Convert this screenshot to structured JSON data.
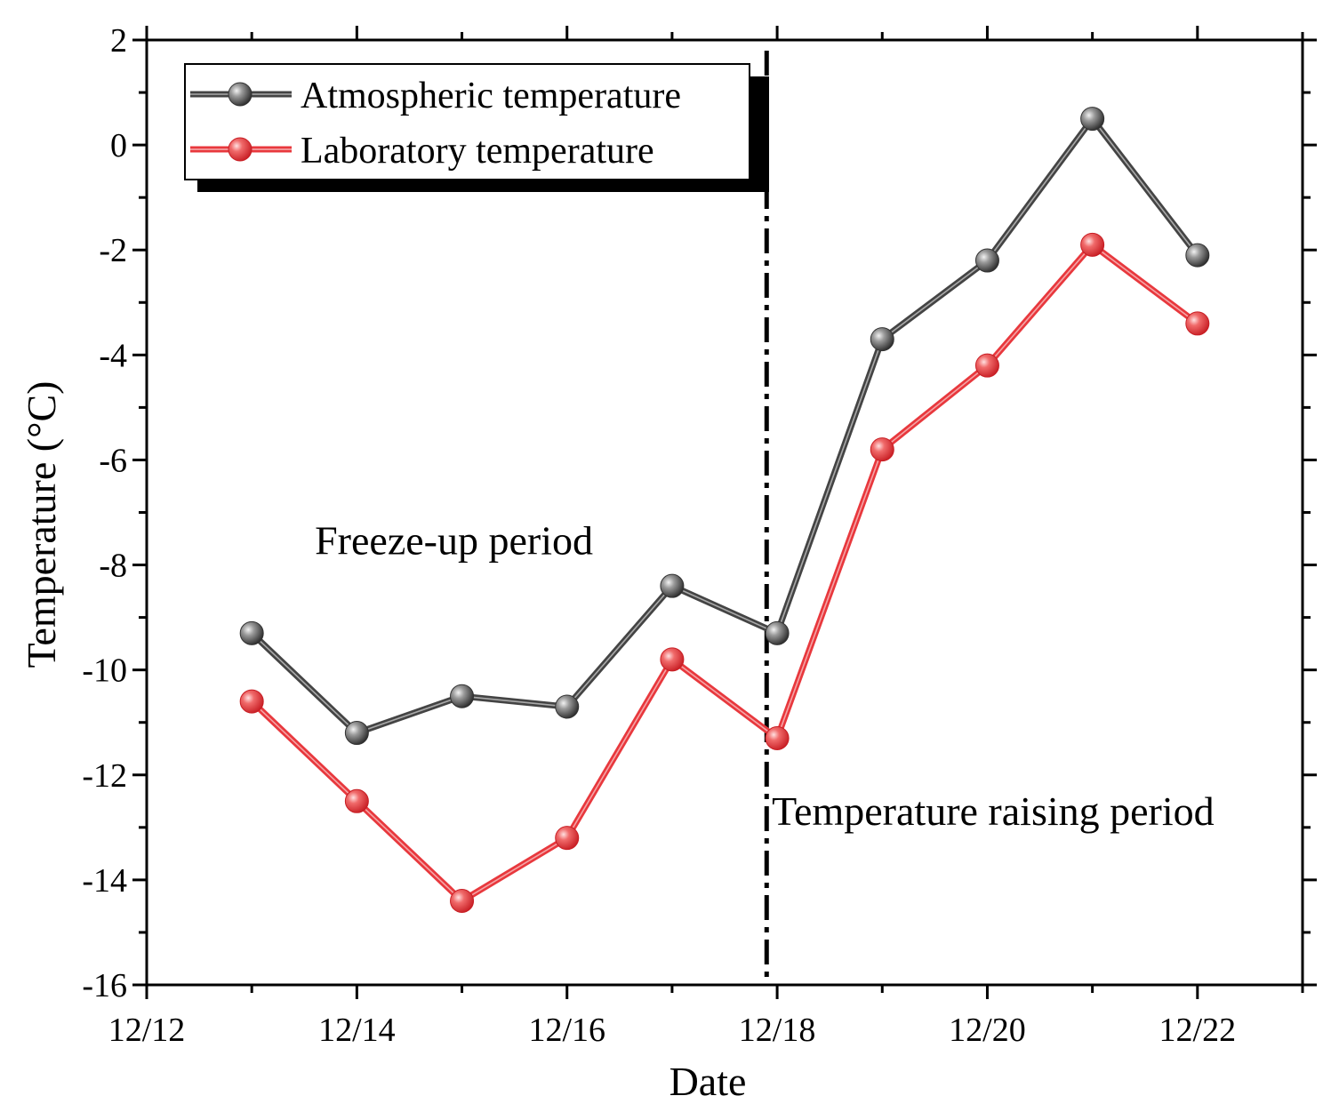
{
  "chart_data": {
    "type": "line",
    "title": "",
    "xlabel": "Date",
    "ylabel": "Temperature (°C)",
    "x_tick_labels": [
      "12/12",
      "12/14",
      "12/16",
      "12/18",
      "12/20",
      "12/22"
    ],
    "x_tick_days": [
      12,
      14,
      16,
      18,
      20,
      22
    ],
    "xlim_days": [
      12,
      23
    ],
    "y_ticks": [
      2,
      0,
      -2,
      -4,
      -6,
      -8,
      -10,
      -12,
      -14,
      -16
    ],
    "ylim": [
      -16,
      2
    ],
    "x_days": [
      13,
      14,
      15,
      16,
      17,
      18,
      19,
      20,
      21,
      22
    ],
    "series": [
      {
        "name": "Atmospheric temperature",
        "color": "#444444",
        "values": [
          -9.3,
          -11.2,
          -10.5,
          -10.7,
          -8.4,
          -9.3,
          -3.7,
          -2.2,
          0.5,
          -2.1
        ]
      },
      {
        "name": "Laboratory temperature",
        "color": "#e8383d",
        "values": [
          -10.6,
          -12.5,
          -14.4,
          -13.2,
          -9.8,
          -11.3,
          -5.8,
          -4.2,
          -1.9,
          -3.4
        ]
      }
    ],
    "divider_day": 17.9,
    "annotations": [
      {
        "text": "Freeze-up period",
        "x_day": 13.6,
        "y": -7.8
      },
      {
        "text": "Temperature raising period",
        "x_day": 17.95,
        "y": -12.95
      }
    ],
    "legend_position": "top-left"
  }
}
